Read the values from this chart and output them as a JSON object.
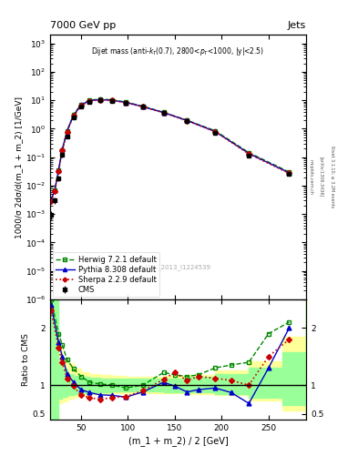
{
  "title_top": "7000 GeV pp",
  "title_right": "Jets",
  "annotation": "Dijet mass (anti-k_{T}(0.7), 2800<p_{T}<1000, |y|<2.5)",
  "cms_label": "CMS_2013_I1224539",
  "rivet_label": "Rivet 3.1.10, ≥ 3.2M events",
  "arxiv_label": "[arXiv:1306.3436]",
  "mcplots_label": "mcplots.cern.ch",
  "xlabel": "(m_1 + m_2) / 2 [GeV]",
  "ylabel_main": "1000/σ 2dσ/d(m_1 + m_2) [1/GeV]",
  "ylabel_ratio": "Ratio to CMS",
  "xlim": [
    17,
    290
  ],
  "ylim_main": [
    1e-06,
    2000
  ],
  "ylim_ratio": [
    0.4,
    2.5
  ],
  "cms_x": [
    18,
    22,
    26,
    30,
    35,
    42,
    50,
    59,
    70,
    83,
    98,
    116,
    138,
    163,
    193,
    229,
    272
  ],
  "cms_y": [
    0.00095,
    0.003,
    0.018,
    0.12,
    0.55,
    2.5,
    6.0,
    9.0,
    10.0,
    9.8,
    8.2,
    6.0,
    3.6,
    1.85,
    0.72,
    0.11,
    0.025
  ],
  "cms_yerr": [
    0.0003,
    0.0008,
    0.004,
    0.02,
    0.08,
    0.3,
    0.6,
    0.9,
    1.0,
    0.9,
    0.7,
    0.5,
    0.35,
    0.18,
    0.07,
    0.012,
    0.003
  ],
  "herwig_x": [
    18,
    22,
    26,
    30,
    35,
    42,
    50,
    59,
    70,
    83,
    98,
    116,
    138,
    163,
    193,
    229,
    272
  ],
  "herwig_y": [
    0.003,
    0.007,
    0.035,
    0.18,
    0.85,
    3.2,
    7.2,
    10.2,
    11.0,
    10.5,
    8.7,
    6.2,
    3.8,
    2.0,
    0.85,
    0.145,
    0.03
  ],
  "pythia_x": [
    18,
    22,
    26,
    30,
    35,
    42,
    50,
    59,
    70,
    83,
    98,
    116,
    138,
    163,
    193,
    229,
    272
  ],
  "pythia_y": [
    0.0032,
    0.007,
    0.035,
    0.19,
    0.82,
    3.0,
    6.8,
    9.8,
    10.6,
    10.1,
    8.4,
    6.0,
    3.7,
    1.95,
    0.8,
    0.135,
    0.028
  ],
  "sherpa_x": [
    18,
    22,
    26,
    30,
    35,
    42,
    50,
    59,
    70,
    83,
    98,
    116,
    138,
    163,
    193,
    229,
    272
  ],
  "sherpa_y": [
    0.0028,
    0.0065,
    0.032,
    0.17,
    0.78,
    2.85,
    6.5,
    9.5,
    10.3,
    9.9,
    8.2,
    5.9,
    3.65,
    1.92,
    0.79,
    0.13,
    0.027
  ],
  "ratio_herwig_x": [
    18,
    26,
    30,
    35,
    42,
    50,
    59,
    70,
    83,
    98,
    116,
    138,
    150,
    163,
    175,
    193,
    210,
    229,
    250,
    272
  ],
  "ratio_herwig_y": [
    2.5,
    1.9,
    1.7,
    1.45,
    1.28,
    1.15,
    1.05,
    1.02,
    1.0,
    0.95,
    1.0,
    1.22,
    1.18,
    1.15,
    1.18,
    1.3,
    1.35,
    1.4,
    1.9,
    2.1
  ],
  "ratio_pythia_x": [
    18,
    26,
    30,
    35,
    42,
    50,
    59,
    70,
    83,
    98,
    116,
    138,
    150,
    163,
    175,
    193,
    210,
    229,
    250,
    272
  ],
  "ratio_pythia_y": [
    2.4,
    1.75,
    1.5,
    1.2,
    1.05,
    0.92,
    0.87,
    0.83,
    0.82,
    0.79,
    0.88,
    1.05,
    0.98,
    0.88,
    0.92,
    0.95,
    0.87,
    0.68,
    1.3,
    2.0
  ],
  "ratio_sherpa_x": [
    18,
    26,
    30,
    35,
    42,
    50,
    59,
    70,
    83,
    98,
    116,
    138,
    150,
    163,
    175,
    193,
    210,
    229,
    250,
    272
  ],
  "ratio_sherpa_y": [
    2.3,
    1.65,
    1.4,
    1.12,
    0.98,
    0.82,
    0.78,
    0.75,
    0.78,
    0.8,
    0.9,
    1.1,
    1.22,
    1.08,
    1.15,
    1.12,
    1.08,
    1.0,
    1.5,
    1.8
  ],
  "band_x": [
    17,
    20,
    26,
    30,
    35,
    42,
    50,
    59,
    70,
    83,
    98,
    116,
    138,
    163,
    193,
    229,
    265,
    290
  ],
  "band_yellow_lo": [
    0.4,
    0.4,
    0.68,
    0.72,
    0.76,
    0.8,
    0.82,
    0.84,
    0.85,
    0.86,
    0.86,
    0.86,
    0.86,
    0.85,
    0.83,
    0.73,
    0.55,
    0.4
  ],
  "band_yellow_hi": [
    2.5,
    2.5,
    1.65,
    1.48,
    1.38,
    1.28,
    1.22,
    1.2,
    1.18,
    1.16,
    1.15,
    1.15,
    1.16,
    1.18,
    1.25,
    1.42,
    1.85,
    2.5
  ],
  "band_green_lo": [
    0.4,
    0.4,
    0.76,
    0.8,
    0.82,
    0.84,
    0.86,
    0.87,
    0.88,
    0.89,
    0.89,
    0.89,
    0.88,
    0.87,
    0.85,
    0.78,
    0.65,
    0.4
  ],
  "band_green_hi": [
    2.5,
    2.5,
    1.38,
    1.28,
    1.2,
    1.16,
    1.14,
    1.13,
    1.12,
    1.11,
    1.11,
    1.11,
    1.12,
    1.14,
    1.2,
    1.3,
    1.58,
    2.5
  ],
  "color_cms": "#000000",
  "color_herwig": "#008800",
  "color_pythia": "#0000cc",
  "color_sherpa": "#cc0000",
  "color_band_yellow": "#ffff99",
  "color_band_green": "#99ff99"
}
